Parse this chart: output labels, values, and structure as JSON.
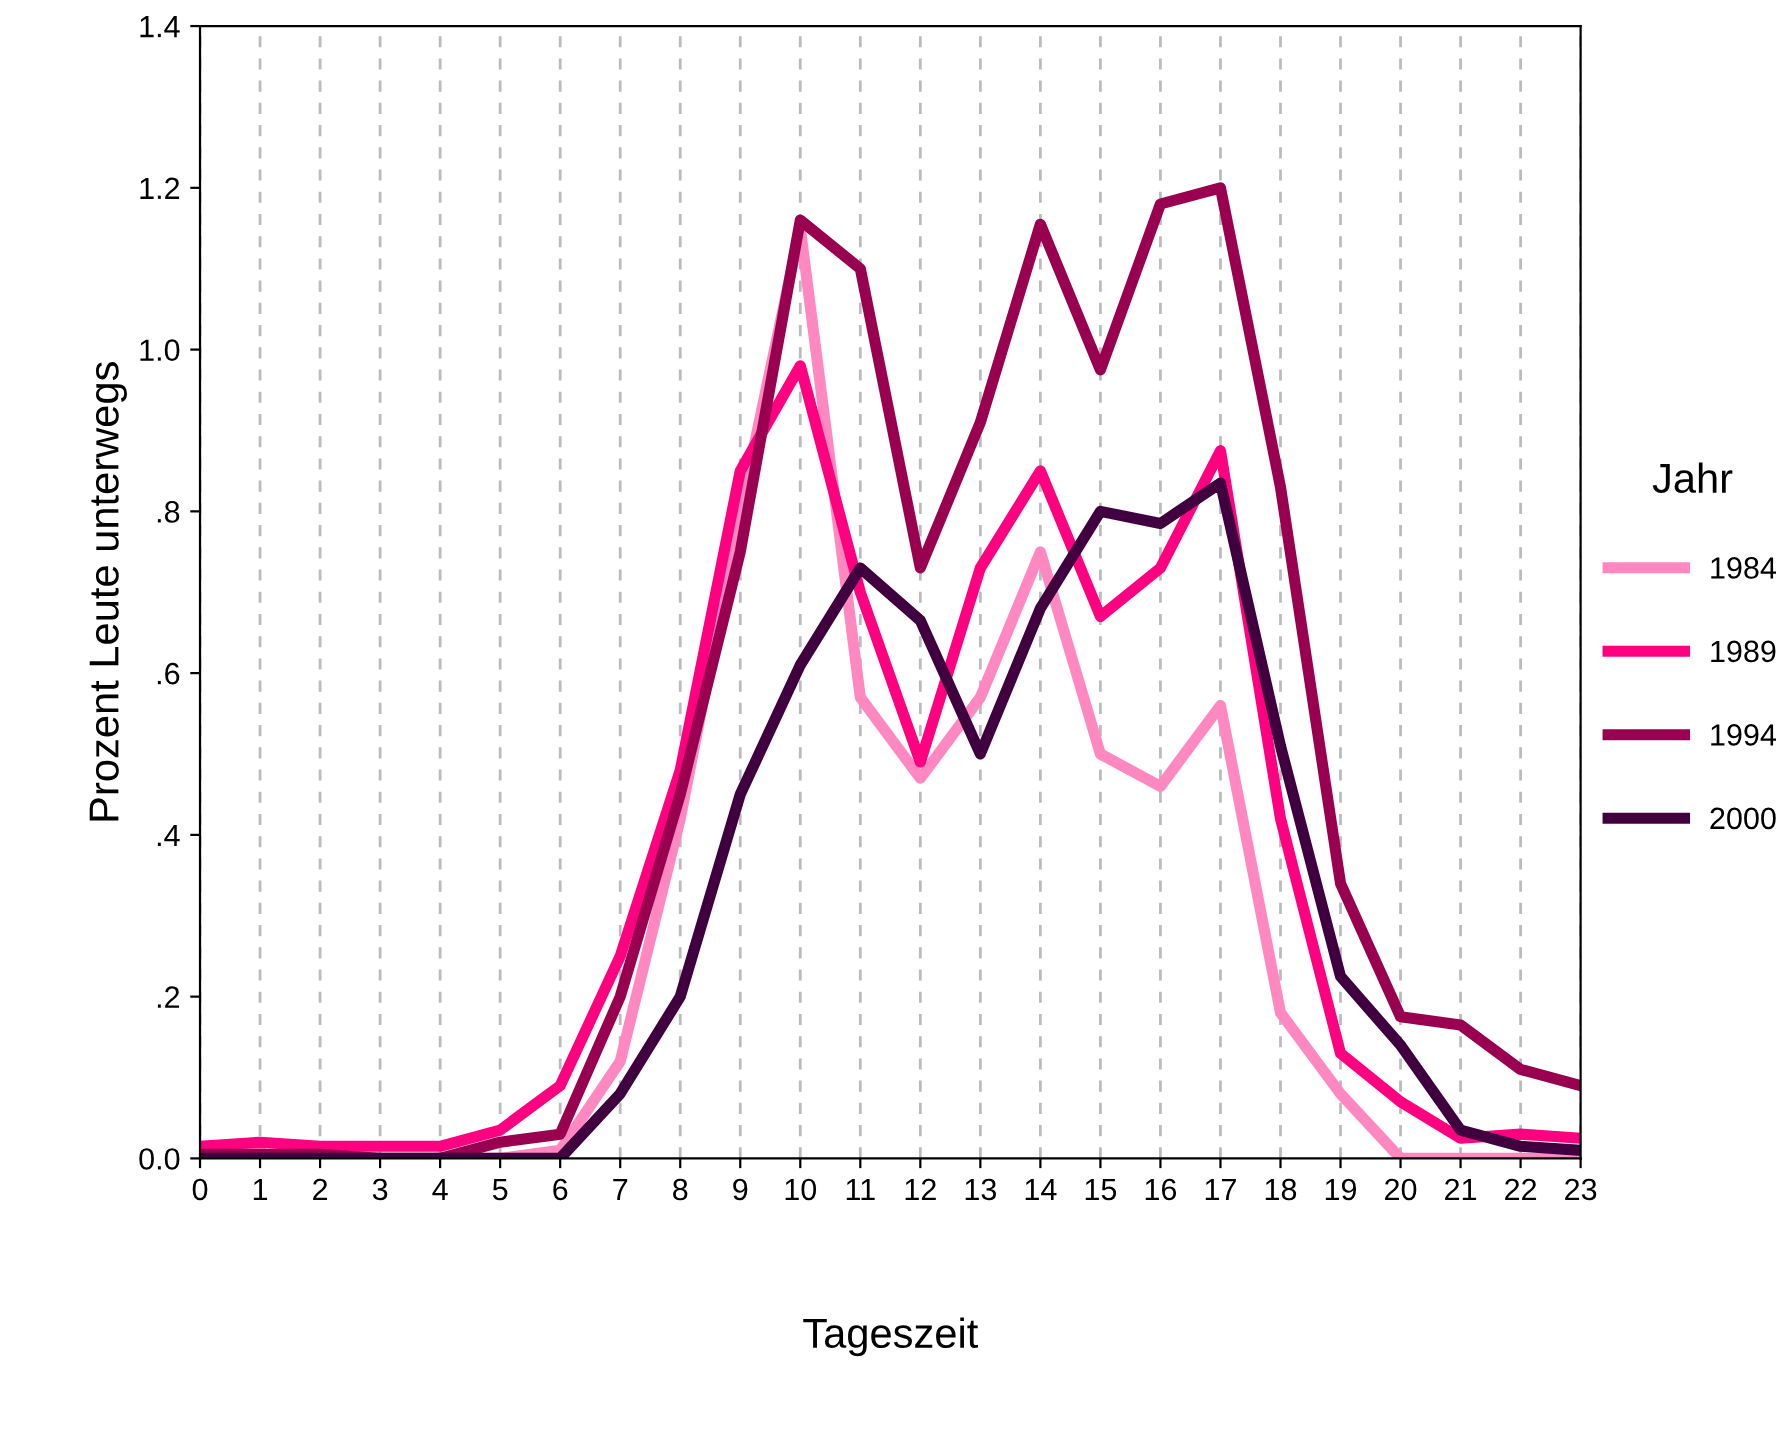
{
  "chart_data": {
    "type": "line",
    "xlabel": "Tageszeit",
    "ylabel": "Prozent Leute unterwegs",
    "legend_title": "Jahr",
    "legend": "right",
    "grid": "x",
    "marker": "none",
    "line_style": "solid",
    "x": [
      0,
      1,
      2,
      3,
      4,
      5,
      6,
      7,
      8,
      9,
      10,
      11,
      12,
      13,
      14,
      15,
      16,
      17,
      18,
      19,
      20,
      21,
      22,
      23
    ],
    "xlim": [
      0,
      23
    ],
    "xticks": [
      0,
      1,
      2,
      3,
      4,
      5,
      6,
      7,
      8,
      9,
      10,
      11,
      12,
      13,
      14,
      15,
      16,
      17,
      18,
      19,
      20,
      21,
      22,
      23
    ],
    "ylim": [
      0,
      1.4
    ],
    "yticks": [
      {
        "value": 0,
        "label": "0.0"
      },
      {
        "value": 0.2,
        "label": ".2"
      },
      {
        "value": 0.4,
        "label": ".4"
      },
      {
        "value": 0.6,
        "label": ".6"
      },
      {
        "value": 0.8,
        "label": ".8"
      },
      {
        "value": 1.0,
        "label": "1.0"
      },
      {
        "value": 1.2,
        "label": "1.2"
      },
      {
        "value": 1.4,
        "label": "1.4"
      }
    ],
    "series": [
      {
        "name": "1984",
        "color": "#ff88c0",
        "values": [
          0.01,
          0.01,
          null,
          null,
          0,
          0,
          0.01,
          0.12,
          0.42,
          0.8,
          1.15,
          0.57,
          0.47,
          0.57,
          0.75,
          0.5,
          0.46,
          0.56,
          0.18,
          0.08,
          0,
          0,
          0,
          0
        ]
      },
      {
        "name": "1989",
        "color": "#ff0080",
        "values": [
          0.015,
          0.02,
          0.015,
          0.015,
          0.015,
          0.035,
          0.09,
          0.25,
          0.48,
          0.85,
          0.98,
          0.7,
          0.49,
          0.73,
          0.85,
          0.67,
          0.73,
          0.875,
          0.42,
          0.13,
          0.07,
          0.025,
          0.03,
          0.025
        ]
      },
      {
        "name": "1994",
        "color": "#990050",
        "values": [
          0.005,
          0.005,
          0.005,
          0,
          0,
          0.02,
          0.03,
          0.2,
          0.45,
          0.75,
          1.16,
          1.1,
          0.73,
          0.91,
          1.155,
          0.975,
          1.18,
          1.2,
          0.83,
          0.34,
          0.175,
          0.165,
          0.11,
          0.09
        ]
      },
      {
        "name": "2000",
        "color": "#40003f",
        "values": [
          0,
          0,
          0,
          0,
          0,
          0,
          0,
          0.08,
          0.2,
          0.45,
          0.61,
          0.73,
          0.665,
          0.5,
          0.68,
          0.8,
          0.785,
          0.835,
          0.51,
          0.225,
          0.14,
          0.035,
          0.015,
          0.01
        ]
      }
    ]
  }
}
